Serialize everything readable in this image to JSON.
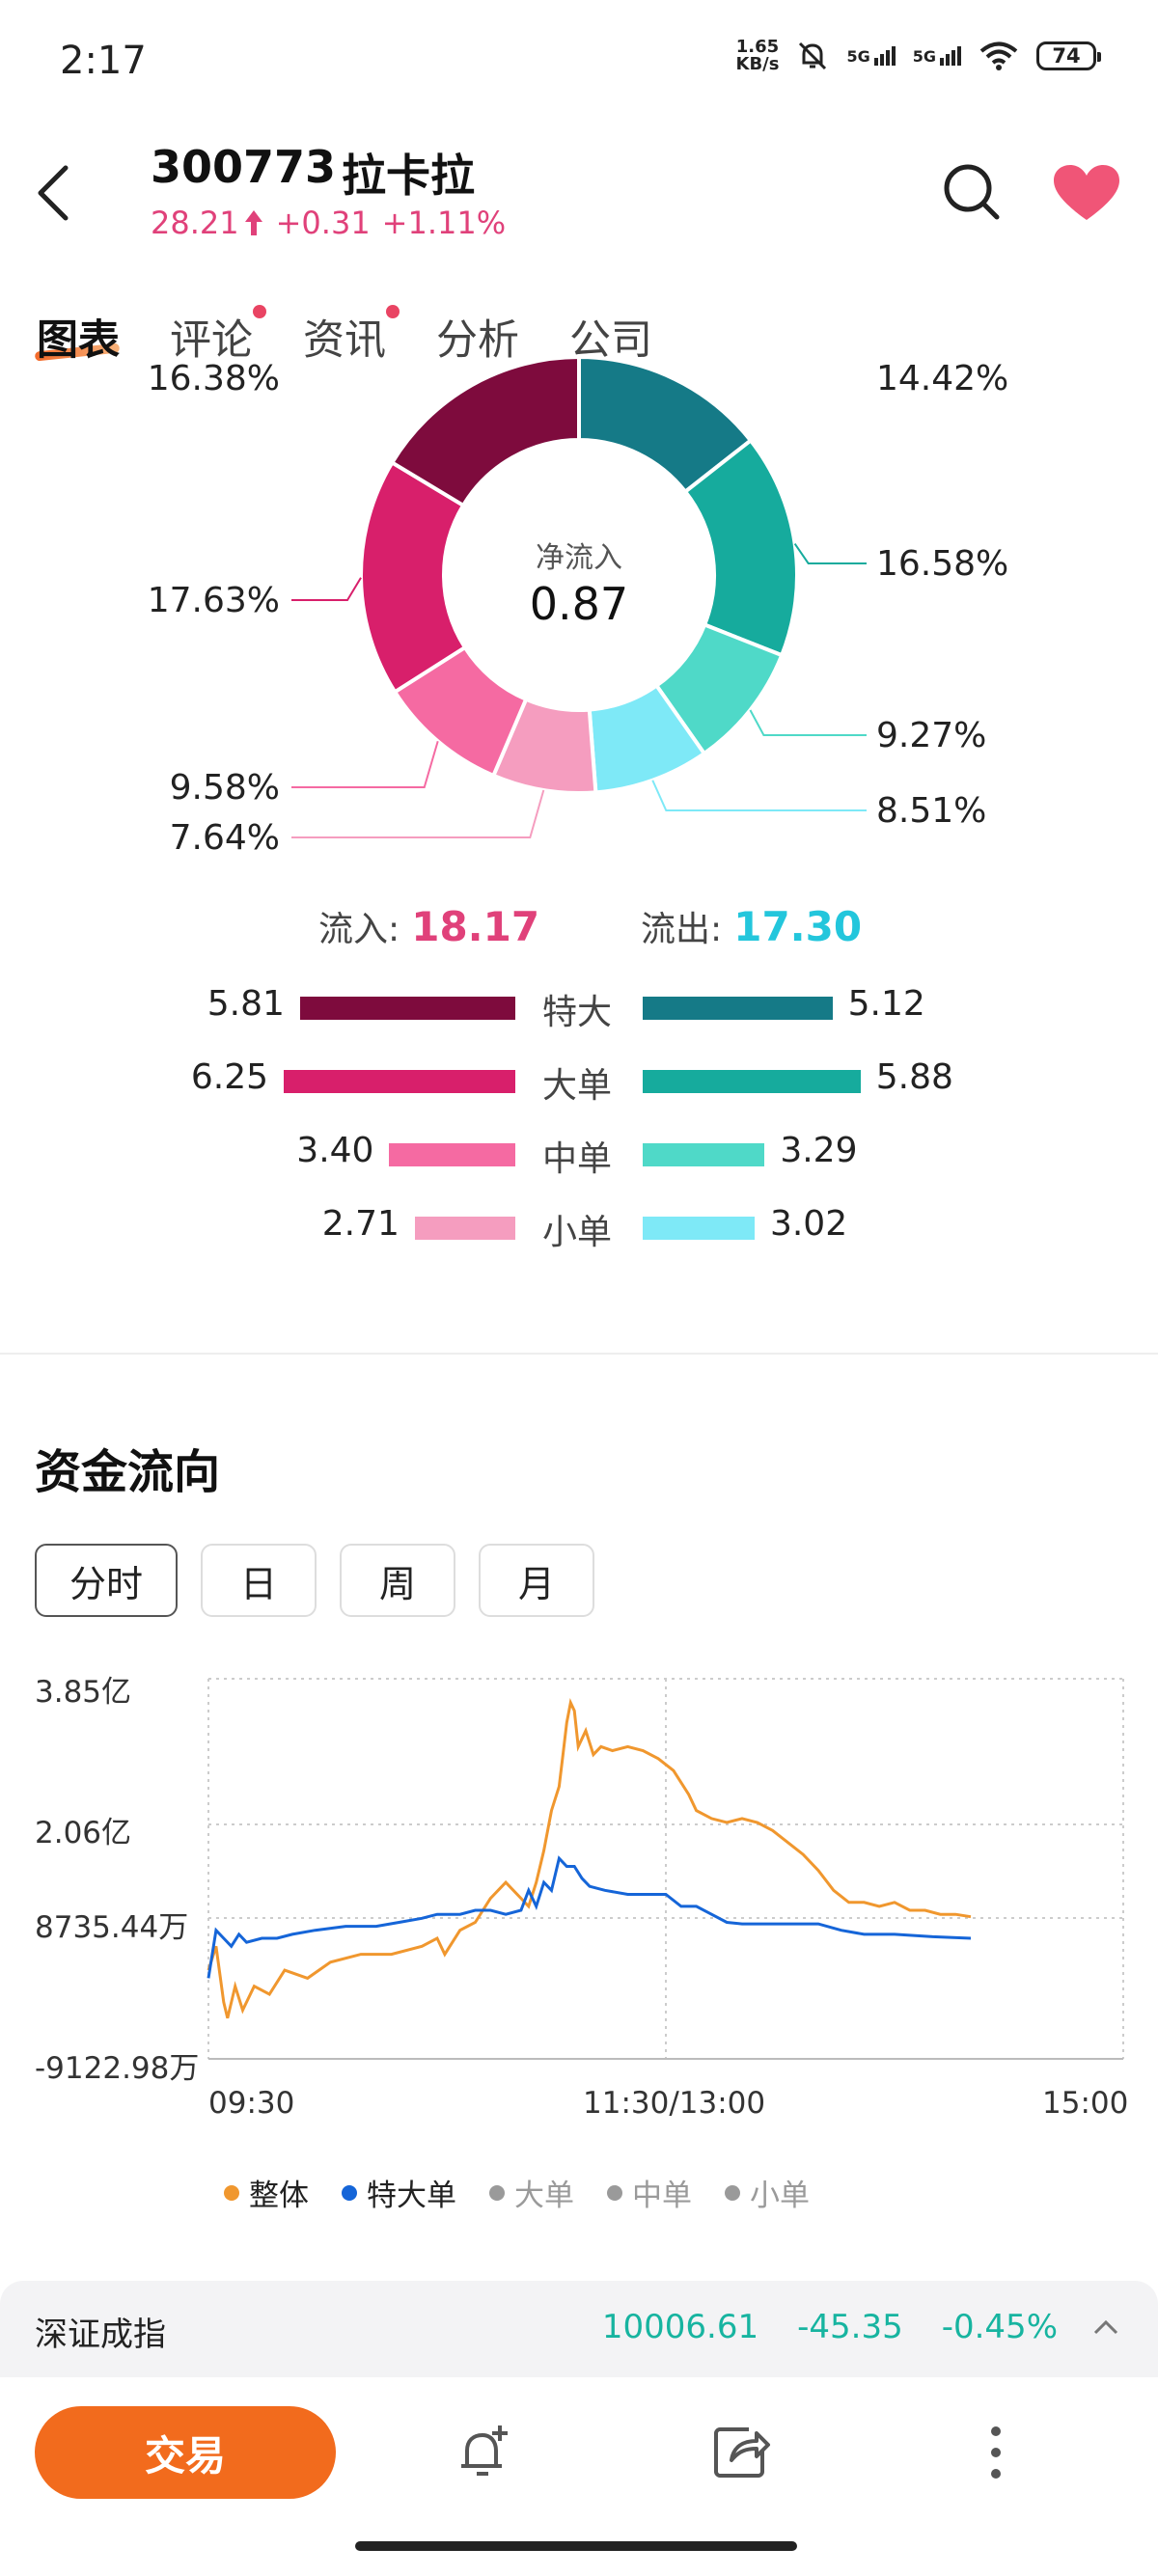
{
  "status_bar": {
    "time": "2:17",
    "speed_top": "1.65",
    "speed_bottom": "KB/s",
    "net1": "5G",
    "net2": "5G",
    "battery": "74"
  },
  "header": {
    "code": "300773",
    "name": "拉卡拉",
    "price": "28.21",
    "change": "+0.31",
    "change_pct": "+1.11%"
  },
  "tabs": [
    {
      "label": "图表"
    },
    {
      "label": "评论"
    },
    {
      "label": "资讯"
    },
    {
      "label": "分析"
    },
    {
      "label": "公司"
    }
  ],
  "donut": {
    "center_label": "净流入",
    "center_value": "0.87",
    "labels_left": [
      "16.38%",
      "17.63%",
      "9.58%",
      "7.64%"
    ],
    "labels_right": [
      "14.42%",
      "16.58%",
      "9.27%",
      "8.51%"
    ],
    "slices": [
      {
        "pct": 14.42,
        "color": "#157a87"
      },
      {
        "pct": 16.58,
        "color": "#16ab9d"
      },
      {
        "pct": 9.27,
        "color": "#4fd9c8"
      },
      {
        "pct": 8.51,
        "color": "#7ee9f7"
      },
      {
        "pct": 7.64,
        "color": "#f59dbf"
      },
      {
        "pct": 9.58,
        "color": "#f56aa2"
      },
      {
        "pct": 17.63,
        "color": "#d81f6b"
      },
      {
        "pct": 16.38,
        "color": "#7e0b3d"
      }
    ]
  },
  "flows": {
    "inflow_label": "流入:",
    "inflow_value": "18.17",
    "outflow_label": "流出:",
    "outflow_value": "17.30",
    "rows": [
      {
        "cat": "特大",
        "in": "5.81",
        "out": "5.12",
        "in_color": "#7e0b3d",
        "out_color": "#157a87"
      },
      {
        "cat": "大单",
        "in": "6.25",
        "out": "5.88",
        "in_color": "#d81f6b",
        "out_color": "#16ab9d"
      },
      {
        "cat": "中单",
        "in": "3.40",
        "out": "3.29",
        "in_color": "#f56aa2",
        "out_color": "#4fd9c8"
      },
      {
        "cat": "小单",
        "in": "2.71",
        "out": "3.02",
        "in_color": "#f59dbf",
        "out_color": "#7ee9f7"
      }
    ]
  },
  "fund_flow": {
    "title": "资金流向",
    "periods": [
      "分时",
      "日",
      "周",
      "月"
    ],
    "active_period": "分时"
  },
  "chart_data": {
    "type": "line",
    "yticks": [
      "3.85亿",
      "2.06亿",
      "8735.44万",
      "-9122.98万"
    ],
    "xticks": [
      "09:30",
      "11:30/13:00",
      "15:00"
    ],
    "legend": [
      {
        "name": "整体",
        "color": "#f0972e",
        "active": true
      },
      {
        "name": "特大单",
        "color": "#1565d8",
        "active": true
      },
      {
        "name": "大单",
        "color": "#9a9a9a",
        "active": false
      },
      {
        "name": "中单",
        "color": "#9a9a9a",
        "active": false
      },
      {
        "name": "小单",
        "color": "#9a9a9a",
        "active": false
      }
    ],
    "ylim": [
      -0.91,
      3.85
    ],
    "x_range": [
      0,
      240
    ],
    "series": [
      {
        "name": "整体",
        "color": "#f0972e",
        "points": [
          [
            0,
            0.2
          ],
          [
            2,
            0.5
          ],
          [
            4,
            -0.2
          ],
          [
            5,
            -0.4
          ],
          [
            7,
            0.0
          ],
          [
            9,
            -0.3
          ],
          [
            12,
            0.0
          ],
          [
            16,
            -0.1
          ],
          [
            20,
            0.2
          ],
          [
            26,
            0.1
          ],
          [
            32,
            0.3
          ],
          [
            40,
            0.4
          ],
          [
            48,
            0.4
          ],
          [
            56,
            0.5
          ],
          [
            60,
            0.6
          ],
          [
            62,
            0.4
          ],
          [
            66,
            0.7
          ],
          [
            70,
            0.8
          ],
          [
            74,
            1.1
          ],
          [
            78,
            1.3
          ],
          [
            82,
            1.1
          ],
          [
            84,
            1.0
          ],
          [
            86,
            1.3
          ],
          [
            88,
            1.7
          ],
          [
            90,
            2.2
          ],
          [
            92,
            2.5
          ],
          [
            93,
            2.9
          ],
          [
            94,
            3.3
          ],
          [
            95,
            3.55
          ],
          [
            96,
            3.45
          ],
          [
            97,
            3.0
          ],
          [
            99,
            3.2
          ],
          [
            101,
            2.9
          ],
          [
            103,
            3.0
          ],
          [
            106,
            2.95
          ],
          [
            110,
            3.0
          ],
          [
            114,
            2.95
          ],
          [
            118,
            2.85
          ],
          [
            122,
            2.7
          ],
          [
            126,
            2.4
          ],
          [
            128,
            2.2
          ],
          [
            132,
            2.1
          ],
          [
            136,
            2.05
          ],
          [
            140,
            2.1
          ],
          [
            144,
            2.05
          ],
          [
            148,
            1.95
          ],
          [
            152,
            1.8
          ],
          [
            156,
            1.65
          ],
          [
            160,
            1.45
          ],
          [
            164,
            1.2
          ],
          [
            168,
            1.05
          ],
          [
            172,
            1.05
          ],
          [
            176,
            1.0
          ],
          [
            180,
            1.05
          ],
          [
            184,
            0.95
          ],
          [
            188,
            0.95
          ],
          [
            192,
            0.9
          ],
          [
            196,
            0.9
          ],
          [
            200,
            0.87
          ]
        ]
      },
      {
        "name": "特大单",
        "color": "#1565d8",
        "points": [
          [
            0,
            0.1
          ],
          [
            2,
            0.7
          ],
          [
            4,
            0.6
          ],
          [
            6,
            0.5
          ],
          [
            8,
            0.65
          ],
          [
            10,
            0.55
          ],
          [
            14,
            0.6
          ],
          [
            18,
            0.6
          ],
          [
            22,
            0.65
          ],
          [
            28,
            0.7
          ],
          [
            36,
            0.75
          ],
          [
            44,
            0.75
          ],
          [
            50,
            0.8
          ],
          [
            56,
            0.85
          ],
          [
            60,
            0.9
          ],
          [
            66,
            0.9
          ],
          [
            70,
            0.95
          ],
          [
            74,
            0.95
          ],
          [
            78,
            0.9
          ],
          [
            82,
            0.95
          ],
          [
            84,
            1.2
          ],
          [
            86,
            1.0
          ],
          [
            88,
            1.3
          ],
          [
            90,
            1.2
          ],
          [
            92,
            1.6
          ],
          [
            94,
            1.5
          ],
          [
            96,
            1.5
          ],
          [
            98,
            1.35
          ],
          [
            100,
            1.25
          ],
          [
            104,
            1.2
          ],
          [
            110,
            1.15
          ],
          [
            116,
            1.15
          ],
          [
            120,
            1.15
          ],
          [
            124,
            1.0
          ],
          [
            128,
            1.0
          ],
          [
            132,
            0.9
          ],
          [
            136,
            0.8
          ],
          [
            140,
            0.78
          ],
          [
            150,
            0.78
          ],
          [
            160,
            0.78
          ],
          [
            166,
            0.7
          ],
          [
            172,
            0.65
          ],
          [
            180,
            0.65
          ],
          [
            190,
            0.62
          ],
          [
            200,
            0.6
          ]
        ]
      }
    ]
  },
  "index": {
    "name": "深证成指",
    "value": "10006.61",
    "change": "-45.35",
    "change_pct": "-0.45%"
  },
  "bottom_bar": {
    "trade_label": "交易"
  }
}
